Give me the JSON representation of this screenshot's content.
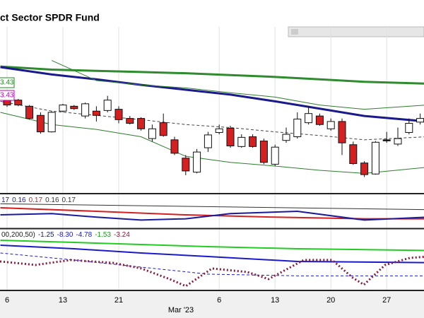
{
  "chart_data": [
    {
      "type": "candlestick",
      "title": "ct Sector SPDR Fund",
      "month_label": "Mar '23",
      "categories": [
        "6",
        null,
        null,
        null,
        null,
        "13",
        null,
        null,
        null,
        null,
        "21",
        null,
        null,
        null,
        null,
        null,
        null,
        null,
        null,
        "6",
        null,
        null,
        null,
        null,
        "13",
        null,
        null,
        null,
        null,
        "20",
        null,
        null,
        null,
        null,
        "27",
        null,
        null,
        null
      ],
      "open": [
        74.1,
        74.0,
        73.5,
        72.75,
        71.4,
        73.1,
        73.5,
        72.7,
        73.1,
        73.15,
        73.25,
        72.5,
        72.5,
        70.85,
        72.15,
        70.75,
        69.25,
        68.1,
        70.1,
        71.35,
        71.7,
        70.2,
        71.0,
        70.65,
        68.75,
        70.7,
        71.0,
        72.15,
        72.7,
        71.65,
        72.25,
        70.35,
        68.85,
        67.95,
        70.75,
        70.4,
        71.35,
        72.2
      ],
      "high": [
        74.25,
        74.1,
        73.6,
        73.0,
        73.1,
        73.7,
        73.6,
        73.8,
        73.5,
        74.35,
        73.5,
        72.7,
        72.6,
        72.0,
        72.9,
        71.0,
        69.5,
        70.0,
        71.4,
        72.0,
        71.9,
        71.2,
        71.2,
        70.85,
        70.35,
        71.75,
        73.0,
        73.5,
        72.9,
        72.5,
        72.5,
        70.6,
        69.0,
        70.65,
        71.4,
        71.75,
        72.5,
        72.9
      ],
      "low": [
        73.45,
        73.5,
        72.4,
        71.25,
        71.35,
        73.0,
        73.2,
        72.5,
        72.25,
        73.0,
        72.1,
        72.0,
        71.5,
        70.6,
        71.0,
        69.5,
        67.85,
        68.0,
        69.75,
        71.2,
        70.1,
        70.1,
        70.1,
        68.75,
        68.6,
        70.5,
        70.85,
        72.0,
        71.9,
        71.5,
        69.5,
        68.7,
        67.7,
        67.9,
        70.5,
        70.25,
        71.2,
        72.0
      ],
      "close": [
        73.6,
        73.6,
        72.5,
        71.4,
        73.0,
        73.6,
        73.3,
        73.7,
        72.75,
        74.0,
        72.4,
        72.1,
        71.65,
        71.65,
        71.1,
        69.65,
        68.2,
        69.75,
        71.15,
        71.65,
        70.25,
        70.95,
        70.2,
        68.9,
        70.15,
        71.2,
        72.45,
        72.9,
        72.0,
        72.25,
        70.5,
        68.8,
        67.9,
        70.55,
        70.75,
        70.85,
        72.1,
        72.5
      ],
      "up_color": "#ffffff",
      "down_color": "#d42020",
      "ylim": [
        66.4,
        80
      ],
      "price_labels": [
        {
          "text": "3.43",
          "color": "#1a8c1a"
        },
        {
          "text": "3.43",
          "color": "#c000c0"
        }
      ],
      "series": [
        {
          "color": "#2e8b2e",
          "width": 3,
          "x": [
            -0.6,
            4,
            8,
            12,
            16,
            20,
            24,
            28,
            32,
            37.6
          ],
          "values": [
            76.75,
            76.5,
            76.4,
            76.3,
            76.2,
            76.05,
            75.9,
            75.7,
            75.5,
            75.35
          ]
        },
        {
          "color": "#1a1a8c",
          "width": 3,
          "x": [
            -0.6,
            4,
            8,
            12,
            16,
            20,
            24,
            28,
            32,
            37.6
          ],
          "values": [
            76.7,
            76.1,
            75.7,
            75.25,
            74.85,
            74.45,
            73.9,
            73.3,
            72.7,
            72.25
          ]
        },
        {
          "color": "#2e7d2e",
          "width": 1,
          "x": [
            -0.6,
            4,
            8,
            12,
            16,
            20,
            24,
            28,
            32,
            37.6
          ],
          "values": [
            null,
            77.25,
            75.6,
            75.25,
            75.0,
            74.6,
            74.25,
            73.6,
            73.25,
            73.6
          ]
        },
        {
          "color": "#2e7d2e",
          "width": 1,
          "x": [
            -0.6,
            4,
            8,
            12,
            16,
            20,
            24,
            28,
            32,
            37.6
          ],
          "values": [
            73.0,
            72.0,
            71.6,
            71.0,
            69.4,
            68.9,
            68.6,
            68.25,
            68.0,
            68.5
          ]
        },
        {
          "color": "#444444",
          "width": 1,
          "dash": "dash",
          "x": [
            -0.6,
            4,
            8,
            12,
            16,
            20,
            24,
            28,
            32,
            37.6
          ],
          "values": [
            73.9,
            73.1,
            72.75,
            72.4,
            72.0,
            71.75,
            71.4,
            71.1,
            70.75,
            71.0
          ]
        }
      ]
    },
    {
      "type": "line",
      "ylim": [
        0.1,
        0.2
      ],
      "legend": [
        {
          "text": "17",
          "color": "#1a1a9c"
        },
        {
          "text": "0.16",
          "color": "#1a1a9c"
        },
        {
          "text": "0.17",
          "color": "#d42020"
        },
        {
          "text": "0.16",
          "color": "#333333"
        },
        {
          "text": "0.17",
          "color": "#333333"
        }
      ],
      "series": [
        {
          "color": "#333333",
          "width": 1,
          "x": [
            -0.6,
            37.6
          ],
          "values": [
            0.173,
            0.155
          ]
        },
        {
          "color": "#d42020",
          "width": 2,
          "x": [
            -0.6,
            8,
            16,
            24,
            32,
            37.6
          ],
          "values": [
            0.161,
            0.15,
            0.139,
            0.132,
            0.127,
            0.127
          ]
        },
        {
          "color": "#1a1a9c",
          "width": 2,
          "x": [
            -0.6,
            4,
            8,
            12,
            16,
            20,
            26,
            32,
            37.6
          ],
          "values": [
            0.139,
            0.143,
            0.132,
            0.123,
            0.127,
            0.143,
            0.15,
            0.123,
            0.132
          ]
        }
      ]
    },
    {
      "type": "line",
      "ylim": [
        -12,
        4
      ],
      "legend": [
        {
          "text": "00,200,50)",
          "color": "#222222"
        },
        {
          "text": "-1.25",
          "color": "#1a1a5c"
        },
        {
          "text": "-8.30",
          "color": "#1a1acc"
        },
        {
          "text": "-4.78",
          "color": "#1a1acc"
        },
        {
          "text": "-1.53",
          "color": "#18a018"
        },
        {
          "text": "-3.24",
          "color": "#8b1a3a"
        }
      ],
      "series": [
        {
          "color": "#22cc22",
          "width": 2,
          "x": [
            -0.6,
            6,
            12,
            18,
            26,
            37.6
          ],
          "values": [
            1.18,
            0.61,
            0.05,
            -0.52,
            -1.08,
            -1.53
          ]
        },
        {
          "color": "#1a1acc",
          "width": 2,
          "x": [
            -0.6,
            6,
            12,
            18,
            26,
            37.6
          ],
          "values": [
            -0.14,
            -1.08,
            -2.21,
            -3.15,
            -4.47,
            -4.78
          ]
        },
        {
          "color": "#1a1acc",
          "width": 1,
          "dash": "dash",
          "x": [
            -0.6,
            6,
            12,
            18,
            26,
            37.6
          ],
          "values": [
            -2.21,
            -4.09,
            -5.97,
            -7.85,
            -8.3,
            -8.3
          ]
        },
        {
          "color": "#8b1a3a",
          "width": 3,
          "dash": "dot",
          "x": [
            -0.63,
            2.53,
            5.7,
            9.49,
            12.03,
            14.56,
            16.01,
            18.35,
            21.52,
            23.42,
            26.58,
            29.11,
            30.95,
            31.96,
            33.86,
            36.08,
            37.34
          ],
          "values": [
            -4.46,
            -5.4,
            -4.08,
            -4.84,
            -6.34,
            -9.16,
            -11.04,
            -6.34,
            -7.28,
            -9.16,
            -4.08,
            -4.08,
            -8.78,
            -10.66,
            -5.4,
            -3.52,
            -3.24
          ]
        }
      ]
    }
  ]
}
